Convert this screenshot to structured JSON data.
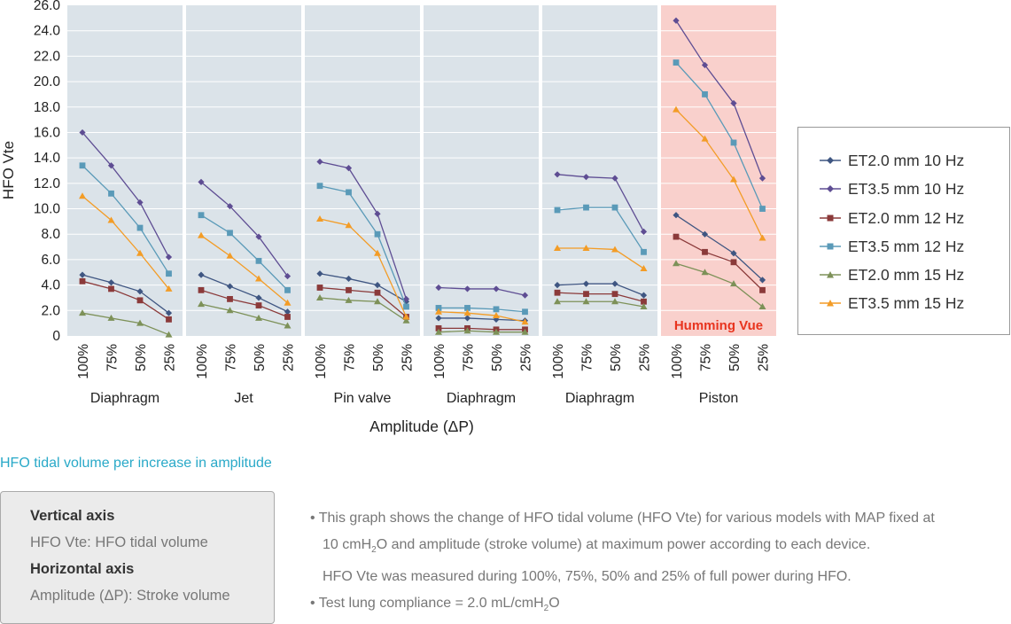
{
  "chart_data": {
    "type": "line",
    "ylabel": "HFO Vte",
    "xlabel": "Amplitude (ΔP)",
    "ylim": [
      0,
      26
    ],
    "y_ticks": [
      "0",
      "2.0",
      "4.0",
      "6.0",
      "8.0",
      "10.0",
      "12.0",
      "14.0",
      "16.0",
      "18.0",
      "20.0",
      "22.0",
      "24.0",
      "26.0"
    ],
    "categories": [
      "100%",
      "75%",
      "50%",
      "25%"
    ],
    "grid": true,
    "legend_position": "right",
    "highlight_label": "Humming Vue",
    "colors": {
      "panel_bg": "#dbe3e9",
      "highlight_bg": "#f9d0cc",
      "highlight_text": "#e8341e",
      "grid": "#ffffff"
    },
    "series_meta": [
      {
        "name": "ET2.0 mm 10 Hz",
        "color": "#3f5682",
        "marker": "diamond"
      },
      {
        "name": "ET3.5 mm 10 Hz",
        "color": "#5e4d93",
        "marker": "diamond"
      },
      {
        "name": "ET2.0 mm 12 Hz",
        "color": "#8b3a3a",
        "marker": "square"
      },
      {
        "name": "ET3.5 mm 12 Hz",
        "color": "#5a9ab8",
        "marker": "square"
      },
      {
        "name": "ET2.0 mm 15 Hz",
        "color": "#7d9158",
        "marker": "triangle"
      },
      {
        "name": "ET3.5 mm 15 Hz",
        "color": "#f39c26",
        "marker": "triangle"
      }
    ],
    "groups": [
      {
        "label": "Diaphragm",
        "highlight": false,
        "series": [
          [
            4.8,
            4.2,
            3.5,
            1.8
          ],
          [
            16.0,
            13.4,
            10.5,
            6.2
          ],
          [
            4.3,
            3.7,
            2.8,
            1.3
          ],
          [
            13.4,
            11.2,
            8.5,
            4.9
          ],
          [
            1.8,
            1.4,
            1.0,
            0.1
          ],
          [
            11.0,
            9.1,
            6.5,
            3.7
          ]
        ]
      },
      {
        "label": "Jet",
        "highlight": false,
        "series": [
          [
            4.8,
            3.9,
            3.0,
            1.9
          ],
          [
            12.1,
            10.2,
            7.8,
            4.7
          ],
          [
            3.6,
            2.9,
            2.4,
            1.5
          ],
          [
            9.5,
            8.1,
            5.9,
            3.6
          ],
          [
            2.5,
            2.0,
            1.4,
            0.8
          ],
          [
            7.9,
            6.3,
            4.5,
            2.6
          ]
        ]
      },
      {
        "label": "Pin valve",
        "highlight": false,
        "series": [
          [
            4.9,
            4.5,
            4.0,
            2.7
          ],
          [
            13.7,
            13.2,
            9.6,
            2.9
          ],
          [
            3.8,
            3.6,
            3.4,
            1.5
          ],
          [
            11.8,
            11.3,
            8.0,
            2.3
          ],
          [
            3.0,
            2.8,
            2.7,
            1.2
          ],
          [
            9.2,
            8.7,
            6.5,
            1.5
          ]
        ]
      },
      {
        "label": "Diaphragm",
        "highlight": false,
        "series": [
          [
            1.4,
            1.4,
            1.3,
            1.2
          ],
          [
            3.8,
            3.7,
            3.7,
            3.2
          ],
          [
            0.6,
            0.6,
            0.5,
            0.5
          ],
          [
            2.2,
            2.2,
            2.1,
            1.9
          ],
          [
            0.3,
            0.4,
            0.3,
            0.3
          ],
          [
            1.9,
            1.8,
            1.6,
            1.1
          ]
        ]
      },
      {
        "label": "Diaphragm",
        "highlight": false,
        "series": [
          [
            4.0,
            4.1,
            4.1,
            3.2
          ],
          [
            12.7,
            12.5,
            12.4,
            8.2
          ],
          [
            3.4,
            3.3,
            3.3,
            2.7
          ],
          [
            9.9,
            10.1,
            10.1,
            6.6
          ],
          [
            2.7,
            2.7,
            2.7,
            2.3
          ],
          [
            6.9,
            6.9,
            6.8,
            5.3
          ]
        ]
      },
      {
        "label": "Piston",
        "highlight": true,
        "series": [
          [
            9.5,
            8.0,
            6.5,
            4.4
          ],
          [
            24.8,
            21.3,
            18.3,
            12.4
          ],
          [
            7.8,
            6.6,
            5.8,
            3.6
          ],
          [
            21.5,
            19.0,
            15.2,
            10.0
          ],
          [
            5.7,
            5.0,
            4.1,
            2.3
          ],
          [
            17.8,
            15.5,
            12.3,
            7.7
          ]
        ]
      }
    ]
  },
  "legend": {
    "items": [
      "ET2.0 mm 10 Hz",
      "ET3.5 mm 10 Hz",
      "ET2.0 mm 12 Hz",
      "ET3.5 mm 12 Hz",
      "ET2.0 mm 15 Hz",
      "ET3.5 mm 15 Hz"
    ]
  },
  "caption": "HFO tidal volume per increase in amplitude",
  "axis_info": {
    "vertical_title": "Vertical axis",
    "vertical_desc": "HFO Vte: HFO tidal volume",
    "horizontal_title": "Horizontal axis",
    "horizontal_desc": "Amplitude (ΔP): Stroke volume"
  },
  "notes": {
    "bullet1_a": "• This graph shows the change of HFO tidal volume (HFO Vte) for various models with MAP fixed at",
    "bullet1_b_pre": "10 cmH",
    "bullet1_b_sub": "2",
    "bullet1_b_post": "O and amplitude (stroke volume) at maximum power according to each device.",
    "bullet1_c": "HFO Vte was measured during 100%, 75%, 50% and 25% of full power during HFO.",
    "bullet2_pre": "• Test lung compliance = 2.0 mL/cmH",
    "bullet2_sub": "2",
    "bullet2_post": "O"
  }
}
